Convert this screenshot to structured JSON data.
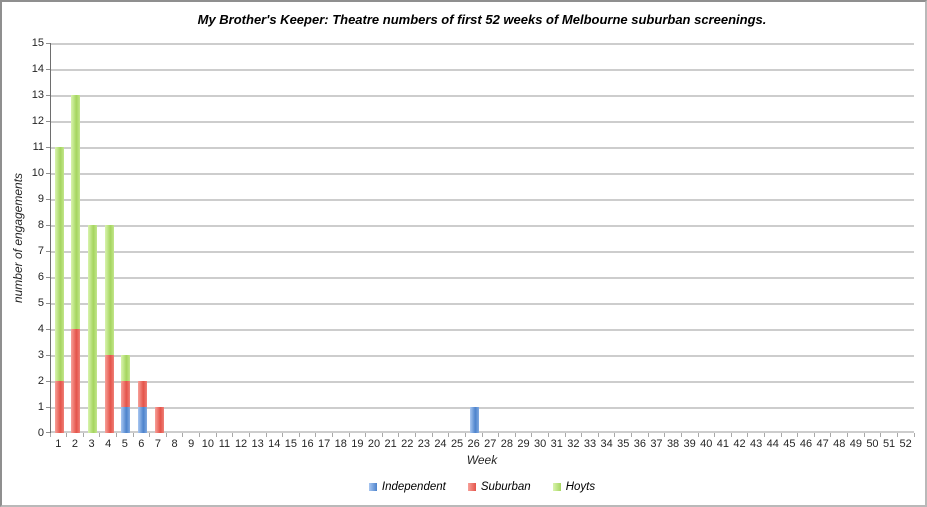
{
  "frame": {
    "background": "#ffffff",
    "border_color": "#9f9f9f"
  },
  "chart_data": {
    "type": "bar",
    "stacked": true,
    "title": "My Brother's Keeper: Theatre numbers of first 52 weeks of Melbourne suburban screenings.",
    "xlabel": "Week",
    "ylabel": "number of engagements",
    "ylim": [
      0,
      15
    ],
    "ytick_step": 1,
    "grid": true,
    "legend_position": "bottom",
    "categories": [
      1,
      2,
      3,
      4,
      5,
      6,
      7,
      8,
      9,
      10,
      11,
      12,
      13,
      14,
      15,
      16,
      17,
      18,
      19,
      20,
      21,
      22,
      23,
      24,
      25,
      26,
      27,
      28,
      29,
      30,
      31,
      32,
      33,
      34,
      35,
      36,
      37,
      38,
      39,
      40,
      41,
      42,
      43,
      44,
      45,
      46,
      47,
      48,
      49,
      50,
      51,
      52
    ],
    "series": [
      {
        "name": "Independent",
        "color": "#6f9ce4",
        "gradient": [
          "#a9c7f1",
          "#4d83cc"
        ],
        "values": [
          0,
          0,
          0,
          0,
          1,
          1,
          0,
          0,
          0,
          0,
          0,
          0,
          0,
          0,
          0,
          0,
          0,
          0,
          0,
          0,
          0,
          0,
          0,
          0,
          0,
          1,
          0,
          0,
          0,
          0,
          0,
          0,
          0,
          0,
          0,
          0,
          0,
          0,
          0,
          0,
          0,
          0,
          0,
          0,
          0,
          0,
          0,
          0,
          0,
          0,
          0,
          0
        ]
      },
      {
        "name": "Suburban",
        "color": "#ee6e63",
        "gradient": [
          "#f7a099",
          "#e4544a"
        ],
        "values": [
          2,
          4,
          0,
          3,
          1,
          1,
          1,
          0,
          0,
          0,
          0,
          0,
          0,
          0,
          0,
          0,
          0,
          0,
          0,
          0,
          0,
          0,
          0,
          0,
          0,
          0,
          0,
          0,
          0,
          0,
          0,
          0,
          0,
          0,
          0,
          0,
          0,
          0,
          0,
          0,
          0,
          0,
          0,
          0,
          0,
          0,
          0,
          0,
          0,
          0,
          0,
          0
        ]
      },
      {
        "name": "Hoyts",
        "color": "#b9e47d",
        "gradient": [
          "#d9f4ae",
          "#a5d55f"
        ],
        "values": [
          9,
          9,
          8,
          5,
          1,
          0,
          0,
          0,
          0,
          0,
          0,
          0,
          0,
          0,
          0,
          0,
          0,
          0,
          0,
          0,
          0,
          0,
          0,
          0,
          0,
          0,
          0,
          0,
          0,
          0,
          0,
          0,
          0,
          0,
          0,
          0,
          0,
          0,
          0,
          0,
          0,
          0,
          0,
          0,
          0,
          0,
          0,
          0,
          0,
          0,
          0,
          0
        ]
      }
    ],
    "colors": {
      "gridline": "#cdcdcd",
      "axis_line": "#6e6e6e",
      "tick": "#a8a8a8",
      "text": "#262626"
    }
  }
}
